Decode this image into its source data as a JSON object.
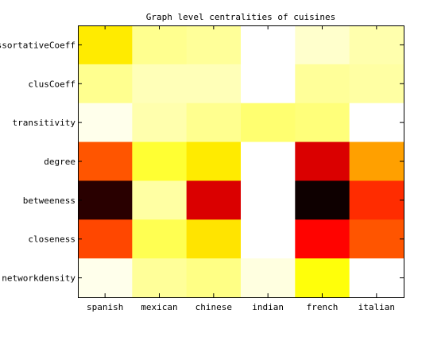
{
  "chart_data": {
    "type": "heatmap",
    "title": "Graph level centralities of cuisines",
    "xlabel": "",
    "ylabel": "",
    "columns": [
      "spanish",
      "mexican",
      "chinese",
      "indian",
      "french",
      "italian"
    ],
    "rows": [
      "assortativeCoeff",
      "clusCoeff",
      "transitivity",
      "degree",
      "betweeness",
      "closeness",
      "networkdensity"
    ],
    "colormap": "hot",
    "value_range": [
      0,
      1
    ],
    "values": [
      [
        0.72,
        0.89,
        0.9,
        1.0,
        0.95,
        0.92
      ],
      [
        0.89,
        0.93,
        0.93,
        1.0,
        0.9,
        0.91
      ],
      [
        0.98,
        0.92,
        0.89,
        0.86,
        0.87,
        1.0
      ],
      [
        0.5,
        0.8,
        0.72,
        1.0,
        0.32,
        0.61
      ],
      [
        0.06,
        0.91,
        0.32,
        1.0,
        0.02,
        0.44
      ],
      [
        0.48,
        0.83,
        0.71,
        1.0,
        0.38,
        0.5
      ],
      [
        0.98,
        0.9,
        0.88,
        0.97,
        0.76,
        1.0
      ]
    ],
    "grid": false
  }
}
